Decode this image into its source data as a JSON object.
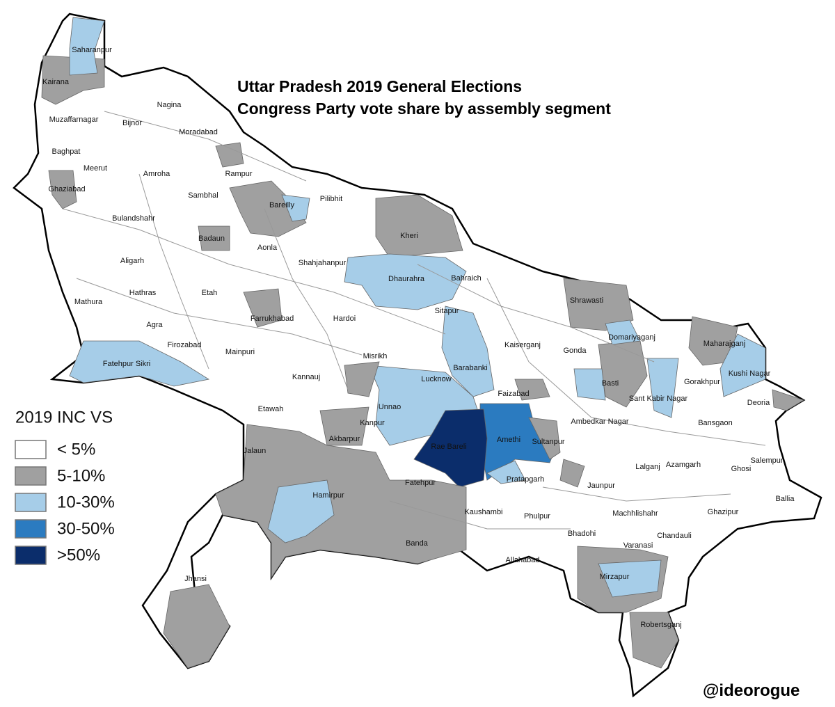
{
  "title": {
    "line1": "Uttar Pradesh 2019 General Elections",
    "line2": "Congress Party vote share by assembly segment"
  },
  "legend": {
    "title": "2019 INC VS",
    "items": [
      {
        "label": "< 5%",
        "color": "#ffffff"
      },
      {
        "label": "5-10%",
        "color": "#a0a0a0"
      },
      {
        "label": "10-30%",
        "color": "#a6cde8"
      },
      {
        "label": "30-50%",
        "color": "#2b7bc0"
      },
      {
        "label": ">50%",
        "color": "#0b2d6b"
      }
    ]
  },
  "places": [
    "Saharanpur",
    "Kairana",
    "Nagina",
    "Muzaffarnagar",
    "Bijnor",
    "Moradabad",
    "Baghpat",
    "Meerut",
    "Amroha",
    "Rampur",
    "Ghaziabad",
    "Sambhal",
    "Bareilly",
    "Pilibhit",
    "Bulandshahr",
    "Badaun",
    "Kheri",
    "Aonla",
    "Aligarh",
    "Shahjahanpur",
    "Dhaurahra",
    "Bahraich",
    "Hathras",
    "Etah",
    "Mathura",
    "Shrawasti",
    "Sitapur",
    "Farrukhabad",
    "Hardoi",
    "Agra",
    "Domariyaganj",
    "Firozabad",
    "Kaiserganj",
    "Gonda",
    "Maharajganj",
    "Mainpuri",
    "Misrikh",
    "Fatehpur Sikri",
    "Barabanki",
    "Kannauj",
    "Lucknow",
    "Basti",
    "Gorakhpur",
    "Kushi Nagar",
    "Faizabad",
    "Sant Kabir Nagar",
    "Deoria",
    "Etawah",
    "Unnao",
    "Kanpur",
    "Akbarpur",
    "Ambedkar Nagar",
    "Bansgaon",
    "Amethi",
    "Sultanpur",
    "Rae Bareli",
    "Jalaun",
    "Salempur",
    "Lalganj",
    "Azamgarh",
    "Ghosi",
    "Pratapgarh",
    "Fatehpur",
    "Jaunpur",
    "Ballia",
    "Hamirpur",
    "Kaushambi",
    "Machhlishahr",
    "Ghazipur",
    "Phulpur",
    "Chandauli",
    "Bhadohi",
    "Varanasi",
    "Banda",
    "Allahabad",
    "Mirzapur",
    "Jhansi",
    "Robertsganj"
  ],
  "credit": "@ideorogue"
}
